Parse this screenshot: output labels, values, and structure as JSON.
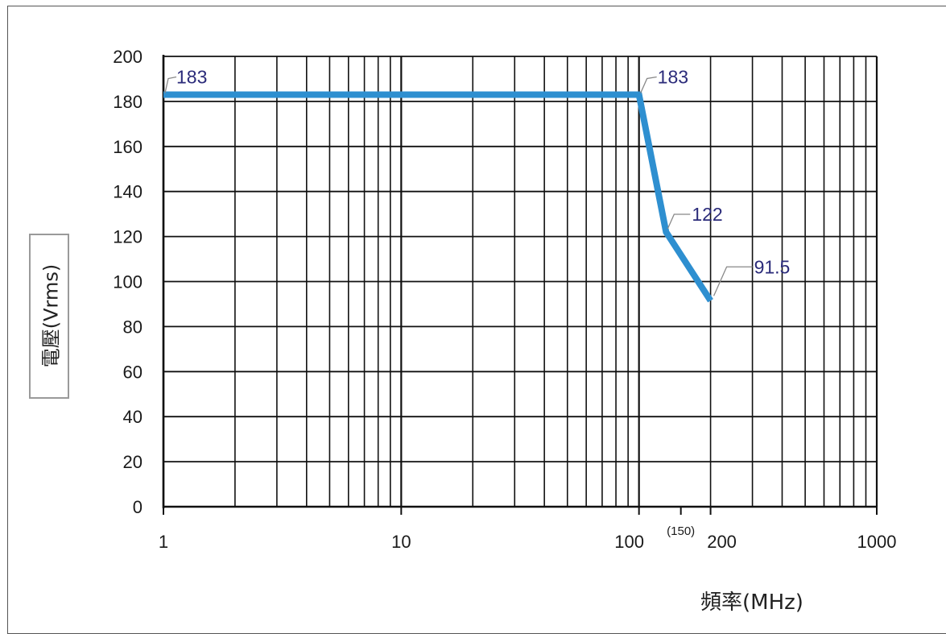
{
  "chart_data": {
    "type": "line",
    "xscale": "log",
    "x_ticks": [
      "1",
      "10",
      "100",
      "200",
      "1000"
    ],
    "x_tick_values": [
      1,
      10,
      100,
      200,
      1000
    ],
    "x_extra_label": "(150)",
    "x_extra_value": 150,
    "y_ticks": [
      "0",
      "20",
      "40",
      "60",
      "80",
      "100",
      "120",
      "140",
      "160",
      "180",
      "200"
    ],
    "xlim": [
      1,
      1000
    ],
    "ylim": [
      0,
      200
    ],
    "xlabel": "頻率(MHz)",
    "ylabel": "電壓(Vrms)",
    "grid": true,
    "series": [
      {
        "x": [
          1,
          100,
          130,
          200
        ],
        "y": [
          183,
          183,
          122,
          91.5
        ],
        "color": "#2e8fd0"
      }
    ],
    "annotations": [
      {
        "text": "183",
        "x": 1,
        "y": 183
      },
      {
        "text": "183",
        "x": 100,
        "y": 183
      },
      {
        "text": "122",
        "x": 130,
        "y": 122
      },
      {
        "text": "91.5",
        "x": 200,
        "y": 91.5
      }
    ]
  }
}
